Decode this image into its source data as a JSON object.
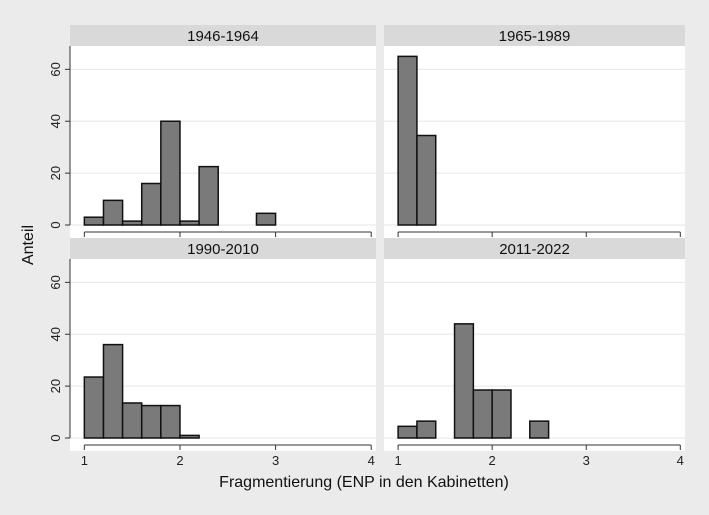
{
  "chart_data": {
    "type": "bar",
    "xlabel": "Fragmentierung (ENP in den Kabinetten)",
    "ylabel": "Anteil",
    "xlim": [
      0.85,
      4.05
    ],
    "ylim": [
      0,
      69
    ],
    "xticks": [
      1,
      2,
      3,
      4
    ],
    "yticks": [
      0,
      20,
      40,
      60
    ],
    "bin_width": 0.2,
    "grid": true,
    "bar_color": "#7a7a7a",
    "panels": [
      {
        "title": "1946-1964",
        "bins": [
          {
            "start": 1.0,
            "value": 3
          },
          {
            "start": 1.2,
            "value": 9.5
          },
          {
            "start": 1.4,
            "value": 1.5
          },
          {
            "start": 1.6,
            "value": 16
          },
          {
            "start": 1.8,
            "value": 40
          },
          {
            "start": 2.0,
            "value": 1.5
          },
          {
            "start": 2.2,
            "value": 22.5
          },
          {
            "start": 2.8,
            "value": 4.5
          }
        ]
      },
      {
        "title": "1965-1989",
        "bins": [
          {
            "start": 1.0,
            "value": 65
          },
          {
            "start": 1.2,
            "value": 34.5
          }
        ]
      },
      {
        "title": "1990-2010",
        "bins": [
          {
            "start": 1.0,
            "value": 23.5
          },
          {
            "start": 1.2,
            "value": 36
          },
          {
            "start": 1.4,
            "value": 13.5
          },
          {
            "start": 1.6,
            "value": 12.5
          },
          {
            "start": 1.8,
            "value": 12.5
          },
          {
            "start": 2.0,
            "value": 1
          }
        ]
      },
      {
        "title": "2011-2022",
        "bins": [
          {
            "start": 1.0,
            "value": 4.5
          },
          {
            "start": 1.2,
            "value": 6.5
          },
          {
            "start": 1.6,
            "value": 44
          },
          {
            "start": 1.8,
            "value": 18.5
          },
          {
            "start": 2.0,
            "value": 18.5
          },
          {
            "start": 2.4,
            "value": 6.5
          }
        ]
      }
    ]
  }
}
